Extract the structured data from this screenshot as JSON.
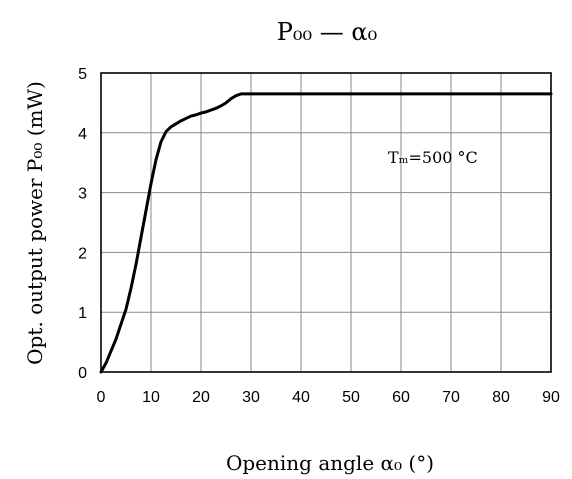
{
  "chart_data": {
    "type": "line",
    "title": "P₀₀ — α₀",
    "xlabel": "Opening angle α₀ (°)",
    "ylabel": "Opt. output power P₀₀ (mW)",
    "xlim": [
      0,
      90
    ],
    "ylim": [
      0,
      5
    ],
    "xticks": [
      0,
      10,
      20,
      30,
      40,
      50,
      60,
      70,
      80,
      90
    ],
    "yticks": [
      0,
      1,
      2,
      3,
      4,
      5
    ],
    "grid": true,
    "annotation": "Tₘ=500 °C",
    "series": [
      {
        "x": [
          0,
          1,
          2,
          3,
          4,
          5,
          6,
          7,
          8,
          9,
          10,
          11,
          12,
          13,
          14,
          15,
          16,
          17,
          18,
          19,
          20,
          21,
          22,
          23,
          24,
          25,
          26,
          27,
          28,
          29,
          30,
          40,
          50,
          60,
          70,
          80,
          90
        ],
        "y": [
          0,
          0.15,
          0.35,
          0.55,
          0.8,
          1.05,
          1.4,
          1.8,
          2.25,
          2.7,
          3.15,
          3.55,
          3.85,
          4.02,
          4.1,
          4.15,
          4.2,
          4.24,
          4.28,
          4.3,
          4.33,
          4.35,
          4.38,
          4.41,
          4.45,
          4.5,
          4.57,
          4.62,
          4.65,
          4.65,
          4.65,
          4.65,
          4.65,
          4.65,
          4.65,
          4.65,
          4.65
        ],
        "color": "#000000"
      }
    ]
  }
}
